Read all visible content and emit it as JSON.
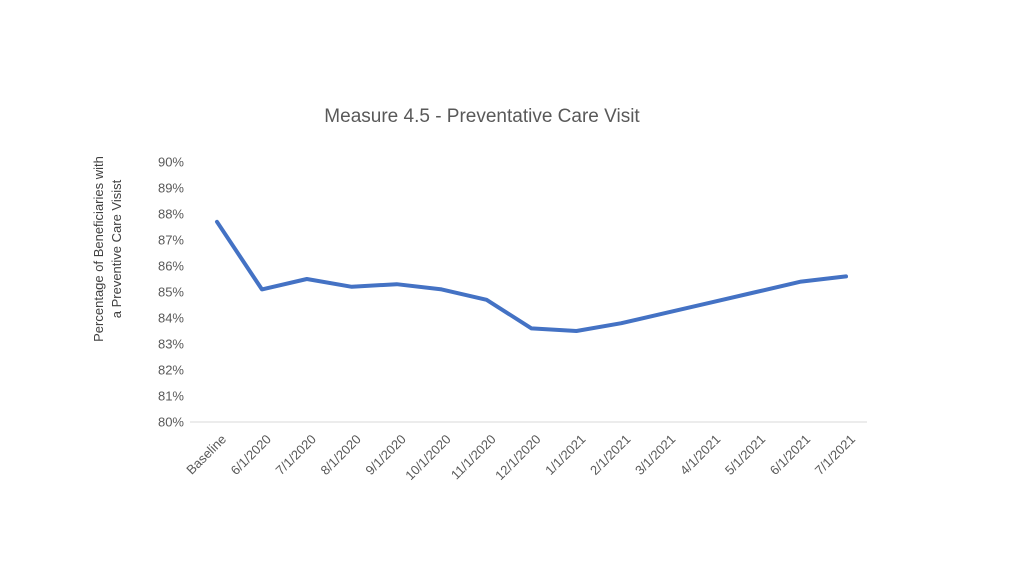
{
  "chart_data": {
    "type": "line",
    "title": "Measure 4.5 - Preventative Care Visit",
    "ylabel": "Percentage of Beneficiaries with a Preventive Care Visist",
    "ylabel_lines": [
      "Percentage of Beneficiaries with",
      "a Preventive Care Visist"
    ],
    "xlabel": "",
    "categories": [
      "Baseline",
      "6/1/2020",
      "7/1/2020",
      "8/1/2020",
      "9/1/2020",
      "10/1/2020",
      "11/1/2020",
      "12/1/2020",
      "1/1/2021",
      "2/1/2021",
      "3/1/2021",
      "4/1/2021",
      "5/1/2021",
      "6/1/2021",
      "7/1/2021"
    ],
    "values": [
      87.7,
      85.1,
      85.5,
      85.2,
      85.3,
      85.1,
      84.7,
      83.6,
      83.5,
      83.8,
      84.2,
      84.6,
      85.0,
      85.4,
      85.6
    ],
    "unit": "%",
    "ylim": [
      80,
      90
    ],
    "ytick_step": 1,
    "ytick_labels": [
      "80%",
      "81%",
      "82%",
      "83%",
      "84%",
      "85%",
      "86%",
      "87%",
      "88%",
      "89%",
      "90%"
    ],
    "xtick_rotation_degrees": 45,
    "legend": "none",
    "gridlines_visible": "only bottom 80% line",
    "colors": {
      "line": "#4472C4",
      "title_text": "#595959",
      "tick_text": "#595959",
      "axis_title_text": "#404040",
      "gridline": "#D9D9D9",
      "background": "#FFFFFF"
    }
  }
}
